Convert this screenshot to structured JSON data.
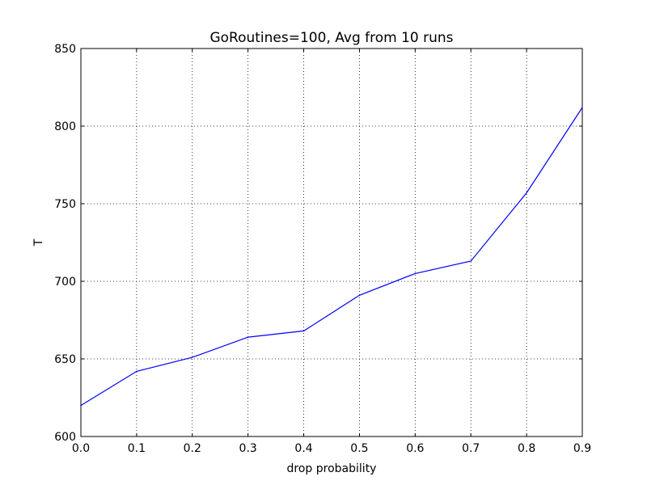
{
  "chart_data": {
    "type": "line",
    "title": "GoRoutines=100, Avg from 10 runs",
    "xlabel": "drop probability",
    "ylabel": "T",
    "xlim": [
      0.0,
      0.9
    ],
    "ylim": [
      600,
      850
    ],
    "x_ticks": [
      "0.0",
      "0.1",
      "0.2",
      "0.3",
      "0.4",
      "0.5",
      "0.6",
      "0.7",
      "0.8",
      "0.9"
    ],
    "y_ticks": [
      "600",
      "650",
      "700",
      "750",
      "800",
      "850"
    ],
    "grid": true,
    "series": [
      {
        "color": "#0000ff",
        "x": [
          0.0,
          0.1,
          0.2,
          0.3,
          0.4,
          0.5,
          0.6,
          0.7,
          0.8,
          0.9
        ],
        "y": [
          620,
          642,
          651,
          664,
          668,
          691,
          705,
          713,
          757,
          812
        ]
      }
    ]
  }
}
